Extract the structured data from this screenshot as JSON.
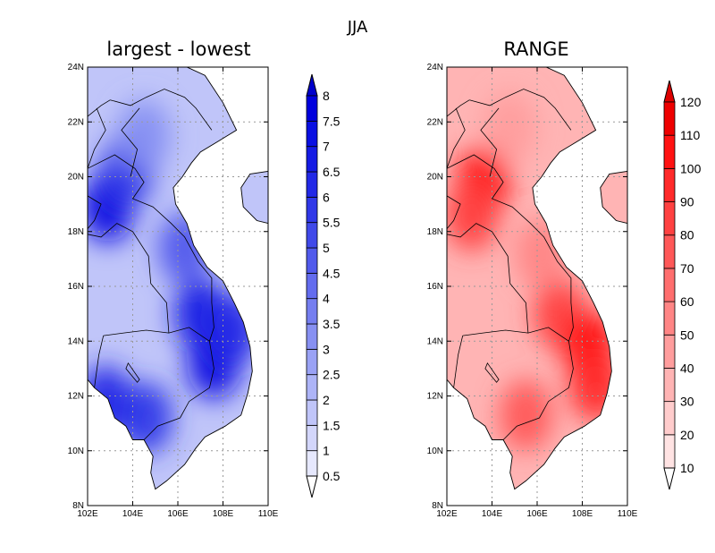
{
  "figure": {
    "supertitle": "JJA",
    "maps": [
      {
        "title": "largest - lowest",
        "colormap": "blue",
        "colorbar": {
          "levels": [
            "0.5",
            "1",
            "1.5",
            "2",
            "2.5",
            "3",
            "3.5",
            "4",
            "4.5",
            "5",
            "5.5",
            "6",
            "6.5",
            "7",
            "7.5",
            "8"
          ],
          "colors": [
            "#ffffff",
            "#e6e8fd",
            "#d3d6fb",
            "#c0c5f9",
            "#adb4f7",
            "#9aa2f5",
            "#8790f2",
            "#757ef0",
            "#636cee",
            "#515aec",
            "#4049e9",
            "#3038e8",
            "#2229e6",
            "#151be4",
            "#0a10e2",
            "#0000dd",
            "#0000cc"
          ]
        },
        "x_ticks": [
          "102E",
          "104E",
          "106E",
          "108E",
          "110E"
        ],
        "y_ticks": [
          "8N",
          "10N",
          "12N",
          "14N",
          "16N",
          "18N",
          "20N",
          "22N",
          "24N"
        ],
        "hotspots": [
          {
            "lon": 102.9,
            "lat": 18.9,
            "value": 7.0
          },
          {
            "lon": 103.8,
            "lat": 20.3,
            "value": 5.5
          },
          {
            "lon": 107.0,
            "lat": 15.0,
            "value": 6.5
          },
          {
            "lon": 107.6,
            "lat": 13.2,
            "value": 7.0
          },
          {
            "lon": 108.4,
            "lat": 14.4,
            "value": 6.0
          },
          {
            "lon": 104.6,
            "lat": 11.2,
            "value": 5.5
          },
          {
            "lon": 102.8,
            "lat": 11.8,
            "value": 6.0
          },
          {
            "lon": 106.3,
            "lat": 17.4,
            "value": 4.5
          },
          {
            "lon": 104.5,
            "lat": 21.5,
            "value": 3.5
          }
        ]
      },
      {
        "title": "RANGE",
        "colormap": "red",
        "colorbar": {
          "levels": [
            "10",
            "20",
            "30",
            "40",
            "50",
            "60",
            "70",
            "80",
            "90",
            "100",
            "110",
            "120"
          ],
          "colors": [
            "#ffffff",
            "#ffe3e3",
            "#ffcccc",
            "#ffb4b4",
            "#ff9d9d",
            "#ff8585",
            "#ff6e6e",
            "#ff5858",
            "#ff4141",
            "#ff2a2a",
            "#ff1212",
            "#ee0000",
            "#dd0000"
          ]
        },
        "x_ticks": [
          "102E",
          "104E",
          "106E",
          "108E",
          "110E"
        ],
        "y_ticks": [
          "8N",
          "10N",
          "12N",
          "14N",
          "16N",
          "18N",
          "20N",
          "22N",
          "24N"
        ],
        "hotspots": [
          {
            "lon": 103.6,
            "lat": 19.8,
            "value": 100
          },
          {
            "lon": 103.1,
            "lat": 18.6,
            "value": 80
          },
          {
            "lon": 107.0,
            "lat": 15.0,
            "value": 85
          },
          {
            "lon": 108.3,
            "lat": 13.8,
            "value": 100
          },
          {
            "lon": 108.6,
            "lat": 12.4,
            "value": 90
          },
          {
            "lon": 105.5,
            "lat": 11.3,
            "value": 75
          },
          {
            "lon": 106.2,
            "lat": 17.2,
            "value": 55
          },
          {
            "lon": 104.8,
            "lat": 21.8,
            "value": 45
          }
        ]
      }
    ]
  }
}
